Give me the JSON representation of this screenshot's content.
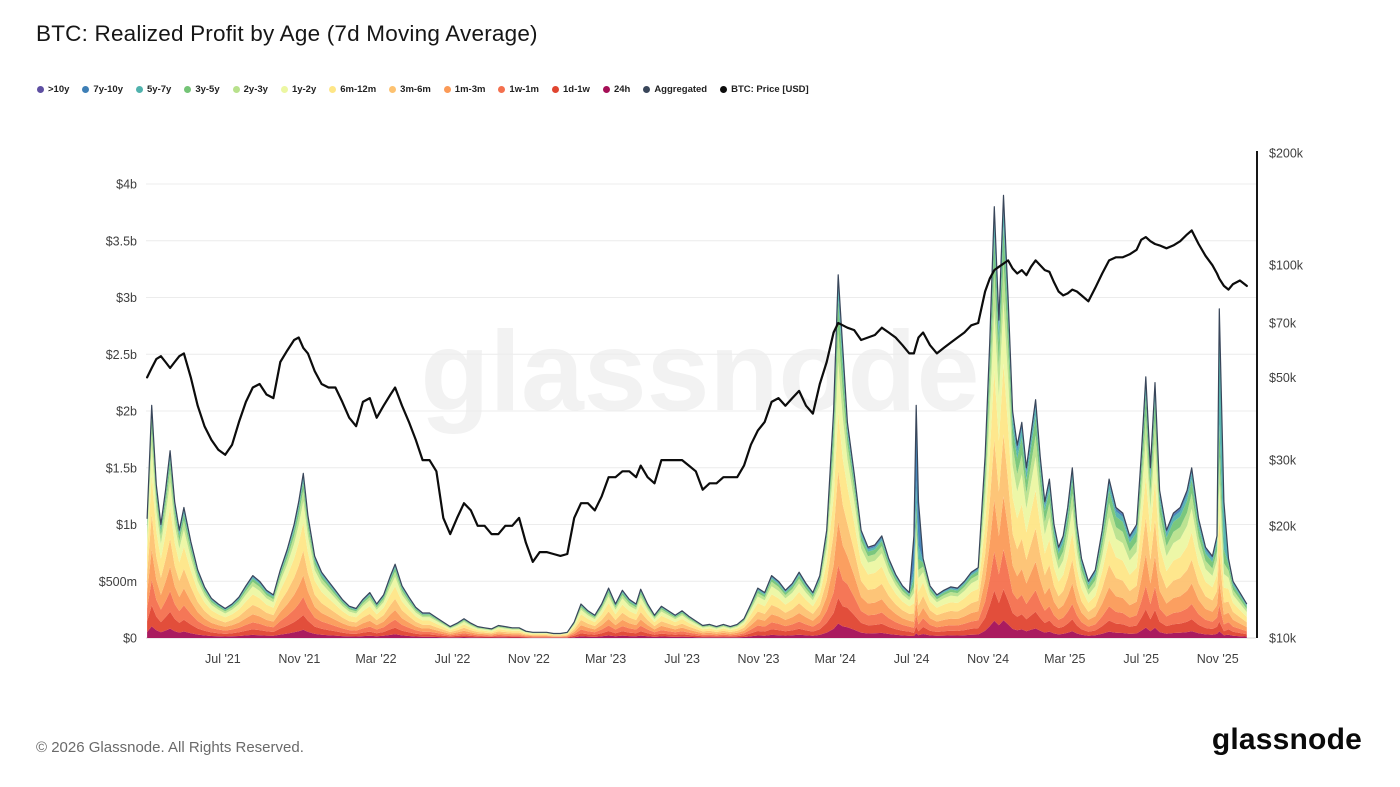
{
  "title": "BTC: Realized Profit by Age (7d Moving Average)",
  "watermark": "glassnode",
  "footer": {
    "copyright": "© 2026 Glassnode. All Rights Reserved.",
    "brand": "glassnode"
  },
  "legend": [
    {
      "label": ">10y",
      "color": "#5e4fa2"
    },
    {
      "label": "7y-10y",
      "color": "#3e7fb6"
    },
    {
      "label": "5y-7y",
      "color": "#50b2ad"
    },
    {
      "label": "3y-5y",
      "color": "#74c476"
    },
    {
      "label": "2y-3y",
      "color": "#b8e18c"
    },
    {
      "label": "1y-2y",
      "color": "#ecf7a2"
    },
    {
      "label": "6m-12m",
      "color": "#fee687"
    },
    {
      "label": "3m-6m",
      "color": "#fdc271"
    },
    {
      "label": "1m-3m",
      "color": "#fb9a57"
    },
    {
      "label": "1w-1m",
      "color": "#f4704e"
    },
    {
      "label": "1d-1w",
      "color": "#e04530"
    },
    {
      "label": "24h",
      "color": "#a50f56"
    },
    {
      "label": "Aggregated",
      "color": "#39465a"
    },
    {
      "label": "BTC: Price [USD]",
      "color": "#0c0c0c"
    }
  ],
  "chart_data": {
    "type": "area",
    "title": "BTC: Realized Profit by Age (7d Moving Average)",
    "x_domain": [
      2021.165,
      2026.0
    ],
    "series_info": [
      {
        "name": "Realized Profit by Age (stacked areas)",
        "axis": "left",
        "units": "USD billions"
      },
      {
        "name": "Aggregated",
        "axis": "left",
        "units": "USD billions"
      },
      {
        "name": "BTC: Price [USD]",
        "axis": "right",
        "units": "USD thousands",
        "scale": "log"
      }
    ],
    "left_axis": {
      "max": 4,
      "ticks": [
        {
          "label": "$4b",
          "value": 4
        },
        {
          "label": "$3.5b",
          "value": 3.5
        },
        {
          "label": "$3b",
          "value": 3
        },
        {
          "label": "$2.5b",
          "value": 2.5
        },
        {
          "label": "$2b",
          "value": 2
        },
        {
          "label": "$1.5b",
          "value": 1.5
        },
        {
          "label": "$1b",
          "value": 1
        },
        {
          "label": "$500m",
          "value": 0.5
        },
        {
          "label": "$0",
          "value": 0
        }
      ]
    },
    "right_axis": {
      "min": 10,
      "max": 200,
      "ticks": [
        {
          "label": "$200k",
          "value": 200
        },
        {
          "label": "$100k",
          "value": 100
        },
        {
          "label": "$70k",
          "value": 70
        },
        {
          "label": "$50k",
          "value": 50
        },
        {
          "label": "$30k",
          "value": 30
        },
        {
          "label": "$20k",
          "value": 20
        },
        {
          "label": "$10k",
          "value": 10
        }
      ]
    },
    "x_ticks": [
      {
        "label": "Jul '21",
        "value": 2021.5
      },
      {
        "label": "Nov '21",
        "value": 2021.833
      },
      {
        "label": "Mar '22",
        "value": 2022.167
      },
      {
        "label": "Jul '22",
        "value": 2022.5
      },
      {
        "label": "Nov '22",
        "value": 2022.833
      },
      {
        "label": "Mar '23",
        "value": 2023.167
      },
      {
        "label": "Jul '23",
        "value": 2023.5
      },
      {
        "label": "Nov '23",
        "value": 2023.833
      },
      {
        "label": "Mar '24",
        "value": 2024.167
      },
      {
        "label": "Jul '24",
        "value": 2024.5
      },
      {
        "label": "Nov '24",
        "value": 2024.833
      },
      {
        "label": "Mar '25",
        "value": 2025.167
      },
      {
        "label": "Jul '25",
        "value": 2025.5
      },
      {
        "label": "Nov '25",
        "value": 2025.833
      }
    ],
    "bands": [
      {
        "name": "24h",
        "color": "#a50f56"
      },
      {
        "name": "1d-1w",
        "color": "#e04530"
      },
      {
        "name": "1w-1m",
        "color": "#f4704e"
      },
      {
        "name": "1m-3m",
        "color": "#fb9a57"
      },
      {
        "name": "3m-6m",
        "color": "#fdc271"
      },
      {
        "name": "6m-12m",
        "color": "#fee687"
      },
      {
        "name": "1y-2y",
        "color": "#ecf7a2"
      },
      {
        "name": "2y-3y",
        "color": "#b8e18c"
      },
      {
        "name": "3y-5y",
        "color": "#74c476"
      },
      {
        "name": "5y-7y",
        "color": "#50b2ad"
      },
      {
        "name": "7y-10y",
        "color": "#3e7fb6"
      },
      {
        "name": ">10y",
        "color": "#5e4fa2"
      }
    ],
    "compositions": {
      "default": [
        0.05,
        0.09,
        0.11,
        0.13,
        0.15,
        0.17,
        0.13,
        0.07,
        0.05,
        0.025,
        0.015,
        0.01
      ],
      "late": [
        0.04,
        0.07,
        0.09,
        0.12,
        0.14,
        0.16,
        0.14,
        0.09,
        0.08,
        0.04,
        0.02,
        0.01
      ],
      "old_blue": [
        0.02,
        0.03,
        0.05,
        0.06,
        0.08,
        0.1,
        0.1,
        0.06,
        0.08,
        0.1,
        0.3,
        0.02
      ],
      "old_teal": [
        0.02,
        0.03,
        0.05,
        0.07,
        0.09,
        0.11,
        0.1,
        0.08,
        0.1,
        0.3,
        0.04,
        0.01
      ]
    },
    "composition_periods": [
      {
        "from": 2021.0,
        "comp": "default"
      },
      {
        "from": 2024.8,
        "comp": "late"
      }
    ],
    "aggregate_color": "#39465a",
    "price_color": "#0c0c0c",
    "point_format": [
      "x_decimal_year",
      "btc_price_usd_thousands",
      "realized_profit_usd_billions",
      "composition_override_optional"
    ],
    "points": [
      [
        2021.17,
        50,
        1.05
      ],
      [
        2021.19,
        53,
        2.05
      ],
      [
        2021.21,
        56,
        1.35
      ],
      [
        2021.23,
        57,
        1.0
      ],
      [
        2021.25,
        55,
        1.3
      ],
      [
        2021.27,
        53,
        1.65
      ],
      [
        2021.29,
        55,
        1.2
      ],
      [
        2021.31,
        57,
        0.95
      ],
      [
        2021.33,
        58,
        1.15
      ],
      [
        2021.36,
        50,
        0.85
      ],
      [
        2021.39,
        42,
        0.6
      ],
      [
        2021.42,
        37,
        0.45
      ],
      [
        2021.45,
        34,
        0.35
      ],
      [
        2021.48,
        32,
        0.3
      ],
      [
        2021.51,
        31,
        0.26
      ],
      [
        2021.54,
        33,
        0.3
      ],
      [
        2021.57,
        38,
        0.36
      ],
      [
        2021.6,
        43,
        0.46
      ],
      [
        2021.63,
        47,
        0.55
      ],
      [
        2021.66,
        48,
        0.5
      ],
      [
        2021.69,
        45,
        0.42
      ],
      [
        2021.72,
        44,
        0.38
      ],
      [
        2021.75,
        55,
        0.6
      ],
      [
        2021.78,
        59,
        0.78
      ],
      [
        2021.81,
        63,
        1.0
      ],
      [
        2021.83,
        64,
        1.2
      ],
      [
        2021.85,
        60,
        1.45
      ],
      [
        2021.87,
        58,
        1.08
      ],
      [
        2021.9,
        52,
        0.72
      ],
      [
        2021.93,
        48,
        0.58
      ],
      [
        2021.96,
        47,
        0.5
      ],
      [
        2021.99,
        47,
        0.42
      ],
      [
        2022.02,
        43,
        0.34
      ],
      [
        2022.05,
        39,
        0.28
      ],
      [
        2022.08,
        37,
        0.26
      ],
      [
        2022.11,
        43,
        0.34
      ],
      [
        2022.14,
        44,
        0.4
      ],
      [
        2022.17,
        39,
        0.3
      ],
      [
        2022.2,
        42,
        0.38
      ],
      [
        2022.23,
        45,
        0.55
      ],
      [
        2022.25,
        47,
        0.65
      ],
      [
        2022.28,
        42,
        0.46
      ],
      [
        2022.31,
        38,
        0.36
      ],
      [
        2022.34,
        34,
        0.27
      ],
      [
        2022.37,
        30,
        0.22
      ],
      [
        2022.4,
        30,
        0.22
      ],
      [
        2022.43,
        28,
        0.18
      ],
      [
        2022.46,
        21,
        0.14
      ],
      [
        2022.49,
        19,
        0.1
      ],
      [
        2022.52,
        21,
        0.13
      ],
      [
        2022.55,
        23,
        0.17
      ],
      [
        2022.58,
        22,
        0.13
      ],
      [
        2022.61,
        20,
        0.1
      ],
      [
        2022.64,
        20,
        0.09
      ],
      [
        2022.67,
        19,
        0.08
      ],
      [
        2022.7,
        19,
        0.11
      ],
      [
        2022.73,
        20,
        0.1
      ],
      [
        2022.76,
        20,
        0.09
      ],
      [
        2022.79,
        21,
        0.09
      ],
      [
        2022.82,
        18,
        0.06
      ],
      [
        2022.85,
        16,
        0.05
      ],
      [
        2022.88,
        17,
        0.05
      ],
      [
        2022.91,
        17,
        0.05
      ],
      [
        2022.94,
        16.8,
        0.04
      ],
      [
        2022.97,
        16.6,
        0.04
      ],
      [
        2023.0,
        16.8,
        0.05
      ],
      [
        2023.03,
        21,
        0.14
      ],
      [
        2023.06,
        23,
        0.3
      ],
      [
        2023.09,
        23,
        0.24
      ],
      [
        2023.12,
        22,
        0.2
      ],
      [
        2023.15,
        24,
        0.3
      ],
      [
        2023.18,
        27,
        0.44
      ],
      [
        2023.21,
        27,
        0.3
      ],
      [
        2023.24,
        28,
        0.42
      ],
      [
        2023.27,
        28,
        0.34
      ],
      [
        2023.3,
        27,
        0.3
      ],
      [
        2023.32,
        29,
        0.43
      ],
      [
        2023.35,
        27,
        0.3
      ],
      [
        2023.38,
        26,
        0.2
      ],
      [
        2023.41,
        30,
        0.28
      ],
      [
        2023.44,
        30,
        0.24
      ],
      [
        2023.47,
        30,
        0.2
      ],
      [
        2023.5,
        30,
        0.24
      ],
      [
        2023.53,
        29,
        0.19
      ],
      [
        2023.56,
        28,
        0.15
      ],
      [
        2023.59,
        25,
        0.11
      ],
      [
        2023.62,
        26,
        0.12
      ],
      [
        2023.65,
        26,
        0.1
      ],
      [
        2023.68,
        27,
        0.12
      ],
      [
        2023.71,
        27,
        0.1
      ],
      [
        2023.74,
        27,
        0.12
      ],
      [
        2023.77,
        29,
        0.17
      ],
      [
        2023.8,
        33,
        0.3
      ],
      [
        2023.83,
        36,
        0.44
      ],
      [
        2023.86,
        38,
        0.4
      ],
      [
        2023.89,
        43,
        0.55
      ],
      [
        2023.92,
        44,
        0.5
      ],
      [
        2023.95,
        42,
        0.42
      ],
      [
        2023.98,
        44,
        0.48
      ],
      [
        2024.01,
        46,
        0.58
      ],
      [
        2024.04,
        42,
        0.48
      ],
      [
        2024.07,
        40,
        0.4
      ],
      [
        2024.1,
        48,
        0.55
      ],
      [
        2024.13,
        55,
        0.95
      ],
      [
        2024.16,
        66,
        2.0,
        "late"
      ],
      [
        2024.18,
        70,
        3.2,
        "late"
      ],
      [
        2024.2,
        69,
        2.55,
        "late"
      ],
      [
        2024.22,
        68,
        1.9
      ],
      [
        2024.25,
        67,
        1.45
      ],
      [
        2024.28,
        63,
        0.95
      ],
      [
        2024.31,
        64,
        0.8
      ],
      [
        2024.34,
        65,
        0.82
      ],
      [
        2024.37,
        68,
        0.9
      ],
      [
        2024.4,
        66,
        0.7
      ],
      [
        2024.43,
        64,
        0.56
      ],
      [
        2024.46,
        61,
        0.46
      ],
      [
        2024.49,
        58,
        0.4
      ],
      [
        2024.51,
        58,
        0.9,
        "old_blue"
      ],
      [
        2024.52,
        61,
        2.05,
        "old_blue"
      ],
      [
        2024.53,
        64,
        1.2,
        "old_blue"
      ],
      [
        2024.55,
        66,
        0.7
      ],
      [
        2024.58,
        61,
        0.46
      ],
      [
        2024.61,
        58,
        0.38
      ],
      [
        2024.64,
        60,
        0.42
      ],
      [
        2024.67,
        62,
        0.45
      ],
      [
        2024.7,
        64,
        0.44
      ],
      [
        2024.73,
        66,
        0.5
      ],
      [
        2024.76,
        69,
        0.58
      ],
      [
        2024.79,
        70,
        0.62
      ],
      [
        2024.82,
        85,
        1.6
      ],
      [
        2024.84,
        92,
        2.6
      ],
      [
        2024.86,
        97,
        3.8
      ],
      [
        2024.88,
        99,
        2.8
      ],
      [
        2024.9,
        101,
        3.9
      ],
      [
        2024.92,
        103,
        3.0
      ],
      [
        2024.94,
        98,
        2.0
      ],
      [
        2024.96,
        95,
        1.7
      ],
      [
        2024.98,
        97,
        1.9
      ],
      [
        2025.0,
        94,
        1.5
      ],
      [
        2025.02,
        99,
        1.8
      ],
      [
        2025.04,
        103,
        2.1
      ],
      [
        2025.06,
        100,
        1.6
      ],
      [
        2025.08,
        97,
        1.2
      ],
      [
        2025.1,
        96,
        1.4
      ],
      [
        2025.12,
        90,
        1.0
      ],
      [
        2025.14,
        85,
        0.8
      ],
      [
        2025.16,
        83,
        0.9
      ],
      [
        2025.18,
        84,
        1.15
      ],
      [
        2025.2,
        86,
        1.5
      ],
      [
        2025.22,
        85,
        1.0
      ],
      [
        2025.24,
        83,
        0.7
      ],
      [
        2025.27,
        80,
        0.5
      ],
      [
        2025.3,
        87,
        0.6
      ],
      [
        2025.33,
        95,
        0.95
      ],
      [
        2025.36,
        103,
        1.4
      ],
      [
        2025.39,
        105,
        1.15
      ],
      [
        2025.42,
        105,
        1.1
      ],
      [
        2025.45,
        107,
        0.9
      ],
      [
        2025.48,
        110,
        1.0
      ],
      [
        2025.5,
        117,
        1.6
      ],
      [
        2025.52,
        119,
        2.3
      ],
      [
        2025.54,
        116,
        1.5
      ],
      [
        2025.56,
        114,
        2.25
      ],
      [
        2025.58,
        113,
        1.3
      ],
      [
        2025.61,
        111,
        0.95
      ],
      [
        2025.64,
        113,
        1.1
      ],
      [
        2025.67,
        116,
        1.15
      ],
      [
        2025.7,
        121,
        1.3
      ],
      [
        2025.72,
        124,
        1.5
      ],
      [
        2025.75,
        114,
        1.05
      ],
      [
        2025.78,
        106,
        0.8
      ],
      [
        2025.81,
        100,
        0.72
      ],
      [
        2025.83,
        95,
        0.9
      ],
      [
        2025.84,
        92,
        2.9,
        "old_teal"
      ],
      [
        2025.86,
        88,
        1.2,
        "old_teal"
      ],
      [
        2025.88,
        86,
        0.7
      ],
      [
        2025.9,
        89,
        0.5
      ],
      [
        2025.93,
        91,
        0.4
      ],
      [
        2025.96,
        88,
        0.3
      ]
    ]
  }
}
